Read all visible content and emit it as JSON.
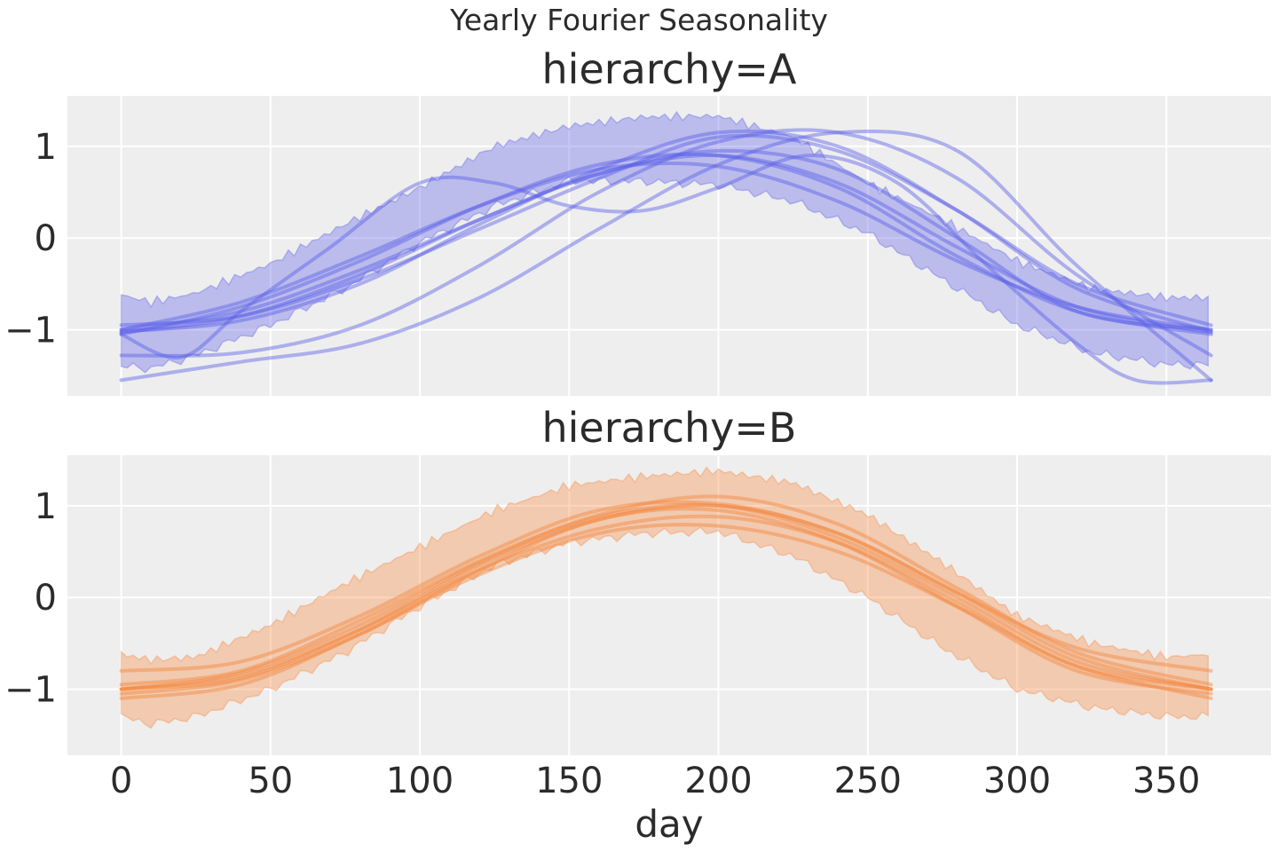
{
  "figure": {
    "suptitle": "Yearly Fourier Seasonality",
    "background": "#ffffff",
    "panel_background": "#eeeeee",
    "grid_color": "#ffffff"
  },
  "chart_data": [
    {
      "type": "line",
      "title": "hierarchy=A",
      "xlabel": "",
      "ylabel": "",
      "xlim": [
        -18,
        385
      ],
      "ylim": [
        -1.72,
        1.55
      ],
      "xticks": [
        0,
        50,
        100,
        150,
        200,
        250,
        300,
        350
      ],
      "xtick_labels": [
        "",
        "",
        "",
        "",
        "",
        "",
        "",
        ""
      ],
      "yticks": [
        -1,
        0,
        1
      ],
      "ytick_labels": [
        "−1",
        "0",
        "1"
      ],
      "grid": true,
      "color": "#5b5fe8",
      "band": {
        "x": [
          0,
          10,
          25,
          50,
          75,
          100,
          125,
          150,
          175,
          200,
          225,
          250,
          275,
          300,
          325,
          350,
          365
        ],
        "lower": [
          -1.4,
          -1.42,
          -1.28,
          -0.95,
          -0.55,
          -0.05,
          0.35,
          0.62,
          0.62,
          0.58,
          0.4,
          0.05,
          -0.45,
          -0.95,
          -1.25,
          -1.38,
          -1.38
        ],
        "upper": [
          -0.62,
          -0.7,
          -0.6,
          -0.28,
          0.15,
          0.55,
          1.0,
          1.22,
          1.32,
          1.33,
          1.1,
          0.6,
          0.2,
          -0.25,
          -0.55,
          -0.65,
          -0.65
        ]
      },
      "series": [
        {
          "x": [
            0,
            40,
            80,
            120,
            160,
            200,
            240,
            280,
            320,
            365
          ],
          "values": [
            -1.03,
            -0.85,
            -0.4,
            0.2,
            0.7,
            0.9,
            0.6,
            -0.1,
            -0.75,
            -1.03
          ]
        },
        {
          "x": [
            0,
            40,
            80,
            120,
            160,
            200,
            240,
            280,
            320,
            365
          ],
          "values": [
            -1.05,
            -0.75,
            -0.25,
            0.35,
            0.8,
            0.9,
            0.55,
            -0.2,
            -0.8,
            -1.05
          ]
        },
        {
          "x": [
            0,
            40,
            80,
            120,
            160,
            200,
            240,
            280,
            320,
            365
          ],
          "values": [
            -1.0,
            -0.7,
            -0.2,
            0.35,
            0.75,
            0.78,
            0.4,
            -0.25,
            -0.75,
            -1.0
          ]
        },
        {
          "x": [
            0,
            40,
            80,
            120,
            160,
            200,
            240,
            280,
            320,
            365
          ],
          "values": [
            -1.02,
            -0.9,
            -0.5,
            0.15,
            0.75,
            1.15,
            1.0,
            0.3,
            -0.55,
            -1.02
          ]
        },
        {
          "x": [
            0,
            40,
            80,
            120,
            160,
            200,
            240,
            280,
            320,
            365
          ],
          "values": [
            -0.95,
            -0.85,
            -0.45,
            0.1,
            0.65,
            1.1,
            0.95,
            0.3,
            -0.5,
            -0.95
          ]
        },
        {
          "x": [
            0,
            40,
            80,
            120,
            160,
            200,
            240,
            280,
            320,
            365
          ],
          "values": [
            -1.28,
            -1.25,
            -0.95,
            -0.3,
            0.5,
            1.05,
            1.15,
            0.65,
            -0.4,
            -1.28
          ]
        },
        {
          "x": [
            0,
            40,
            80,
            120,
            160,
            200,
            240,
            280,
            320,
            365
          ],
          "values": [
            -1.55,
            -1.35,
            -1.15,
            -0.65,
            0.1,
            0.8,
            1.15,
            0.95,
            -0.3,
            -1.55
          ]
        },
        {
          "x": [
            0,
            20,
            40,
            70,
            100,
            125,
            150,
            175,
            200,
            230,
            260,
            290,
            320,
            340,
            365
          ],
          "values": [
            -1.05,
            -1.3,
            -0.8,
            -0.1,
            0.6,
            0.6,
            0.35,
            0.3,
            0.55,
            0.9,
            0.6,
            -0.3,
            -1.15,
            -1.55,
            -1.55
          ]
        },
        {
          "x": [
            0,
            40,
            80,
            120,
            160,
            200,
            240,
            280,
            320,
            365
          ],
          "values": [
            -1.0,
            -0.8,
            -0.35,
            0.2,
            0.7,
            0.95,
            0.75,
            0.0,
            -0.8,
            -1.0
          ]
        }
      ]
    },
    {
      "type": "line",
      "title": "hierarchy=B",
      "xlabel": "day",
      "ylabel": "",
      "xlim": [
        -18,
        385
      ],
      "ylim": [
        -1.72,
        1.55
      ],
      "xticks": [
        0,
        50,
        100,
        150,
        200,
        250,
        300,
        350
      ],
      "xtick_labels": [
        "0",
        "50",
        "100",
        "150",
        "200",
        "250",
        "300",
        "350"
      ],
      "yticks": [
        -1,
        0,
        1
      ],
      "ytick_labels": [
        "−1",
        "0",
        "1"
      ],
      "grid": true,
      "color": "#f5863b",
      "band": {
        "x": [
          0,
          10,
          25,
          50,
          75,
          100,
          125,
          150,
          175,
          200,
          225,
          250,
          275,
          300,
          325,
          350,
          365
        ],
        "lower": [
          -1.3,
          -1.38,
          -1.3,
          -1.0,
          -0.6,
          -0.1,
          0.35,
          0.6,
          0.7,
          0.72,
          0.45,
          0.0,
          -0.55,
          -1.0,
          -1.2,
          -1.3,
          -1.3
        ],
        "upper": [
          -0.62,
          -0.68,
          -0.65,
          -0.3,
          0.15,
          0.55,
          0.95,
          1.22,
          1.32,
          1.38,
          1.25,
          0.9,
          0.38,
          -0.2,
          -0.5,
          -0.65,
          -0.62
        ]
      },
      "series": [
        {
          "x": [
            0,
            40,
            80,
            120,
            160,
            200,
            240,
            280,
            320,
            365
          ],
          "values": [
            -1.0,
            -0.88,
            -0.35,
            0.35,
            0.85,
            1.0,
            0.7,
            0.05,
            -0.65,
            -1.0
          ]
        },
        {
          "x": [
            0,
            40,
            80,
            120,
            160,
            200,
            240,
            280,
            320,
            365
          ],
          "values": [
            -1.0,
            -0.82,
            -0.3,
            0.38,
            0.88,
            1.0,
            0.65,
            0.0,
            -0.7,
            -1.0
          ]
        },
        {
          "x": [
            0,
            40,
            80,
            120,
            160,
            200,
            240,
            280,
            320,
            365
          ],
          "values": [
            -0.8,
            -0.7,
            -0.2,
            0.45,
            0.95,
            1.02,
            0.7,
            0.05,
            -0.55,
            -0.8
          ]
        },
        {
          "x": [
            0,
            40,
            80,
            120,
            160,
            200,
            240,
            280,
            320,
            365
          ],
          "values": [
            -1.1,
            -0.95,
            -0.4,
            0.25,
            0.7,
            0.78,
            0.5,
            -0.1,
            -0.75,
            -1.1
          ]
        },
        {
          "x": [
            0,
            40,
            80,
            120,
            160,
            200,
            240,
            280,
            320,
            365
          ],
          "values": [
            -0.95,
            -0.8,
            -0.25,
            0.4,
            0.9,
            1.1,
            0.8,
            0.1,
            -0.6,
            -0.95
          ]
        },
        {
          "x": [
            0,
            40,
            80,
            120,
            160,
            200,
            240,
            280,
            320,
            365
          ],
          "values": [
            -1.05,
            -0.9,
            -0.4,
            0.3,
            0.85,
            0.95,
            0.6,
            -0.1,
            -0.8,
            -1.05
          ]
        },
        {
          "x": [
            0,
            40,
            80,
            120,
            160,
            200,
            240,
            280,
            320,
            365
          ],
          "values": [
            -1.0,
            -0.85,
            -0.35,
            0.3,
            0.75,
            0.88,
            0.6,
            -0.05,
            -0.75,
            -1.0
          ]
        }
      ]
    }
  ]
}
